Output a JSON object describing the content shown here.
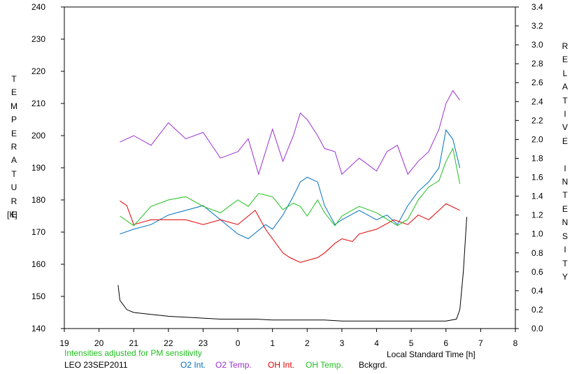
{
  "chart_data": {
    "type": "line",
    "left_axis": {
      "label": "TEMPERATURE",
      "unit": "[K]",
      "range": [
        140,
        240
      ],
      "ticks": [
        140,
        150,
        160,
        170,
        180,
        190,
        200,
        210,
        220,
        230,
        240
      ]
    },
    "right_axis": {
      "label": "RELATIVE INTENSITY",
      "range": [
        0,
        3.4
      ],
      "ticks": [
        "0.0",
        "0.2",
        "0.4",
        "0.6",
        "0.8",
        "1.0",
        "1.2",
        "1.4",
        "1.6",
        "1.8",
        "2.0",
        "2.2",
        "2.4",
        "2.6",
        "2.8",
        "3.0",
        "3.2",
        "3.4"
      ]
    },
    "x_axis": {
      "label": "Local Standard Time [h]",
      "range": [
        19,
        32
      ],
      "tick_labels": [
        "19",
        "20",
        "21",
        "22",
        "23",
        "0",
        "1",
        "2",
        "3",
        "4",
        "5",
        "6",
        "7",
        "8"
      ]
    },
    "note": "Intensities adjusted for PM sensitivity",
    "station_date": "LEO 23SEP2011",
    "grid": false,
    "legend_position": "bottom",
    "series": [
      {
        "name": "O2 Int.",
        "color": "#0070c0",
        "axis": "right",
        "x": [
          20.6,
          21.0,
          21.5,
          22.0,
          22.5,
          23.0,
          23.5,
          24.0,
          24.3,
          24.8,
          25.0,
          25.3,
          25.6,
          25.8,
          26.0,
          26.3,
          26.5,
          26.8,
          27.0,
          27.5,
          28.0,
          28.3,
          28.6,
          28.9,
          29.2,
          29.5,
          29.8,
          30.0,
          30.2,
          30.4
        ],
        "y": [
          1.0,
          1.05,
          1.1,
          1.2,
          1.25,
          1.3,
          1.15,
          1.0,
          0.95,
          1.1,
          1.05,
          1.2,
          1.4,
          1.55,
          1.6,
          1.55,
          1.3,
          1.1,
          1.15,
          1.25,
          1.15,
          1.2,
          1.1,
          1.3,
          1.45,
          1.55,
          1.7,
          2.1,
          2.0,
          1.7
        ]
      },
      {
        "name": "O2 Temp.",
        "color": "#9b30d0",
        "axis": "left",
        "x": [
          20.6,
          21.0,
          21.5,
          22.0,
          22.5,
          23.0,
          23.5,
          24.0,
          24.3,
          24.6,
          25.0,
          25.3,
          25.6,
          25.8,
          26.0,
          26.3,
          26.5,
          26.8,
          27.0,
          27.5,
          28.0,
          28.3,
          28.6,
          28.9,
          29.2,
          29.5,
          29.8,
          30.0,
          30.2,
          30.4
        ],
        "y": [
          198,
          200,
          197,
          204,
          199,
          201,
          193,
          195,
          199,
          188,
          202,
          192,
          200,
          207,
          205,
          200,
          196,
          195,
          188,
          193,
          189,
          195,
          197,
          188,
          192,
          195,
          202,
          210,
          214,
          211
        ]
      },
      {
        "name": "OH Int.",
        "color": "#e00000",
        "axis": "right",
        "x": [
          20.6,
          20.8,
          21.0,
          21.5,
          22.0,
          22.5,
          23.0,
          23.5,
          24.0,
          24.5,
          24.8,
          25.0,
          25.3,
          25.5,
          25.8,
          26.0,
          26.3,
          26.5,
          26.8,
          27.0,
          27.3,
          27.5,
          28.0,
          28.5,
          28.9,
          29.2,
          29.5,
          29.8,
          30.0,
          30.4
        ],
        "y": [
          1.35,
          1.3,
          1.1,
          1.15,
          1.15,
          1.15,
          1.1,
          1.15,
          1.1,
          1.25,
          1.05,
          0.95,
          0.8,
          0.75,
          0.7,
          0.72,
          0.75,
          0.8,
          0.9,
          0.95,
          0.92,
          1.0,
          1.05,
          1.15,
          1.1,
          1.2,
          1.15,
          1.25,
          1.32,
          1.25
        ]
      },
      {
        "name": "OH Temp.",
        "color": "#1fc01f",
        "axis": "left",
        "x": [
          20.6,
          21.0,
          21.5,
          22.0,
          22.5,
          23.0,
          23.5,
          24.0,
          24.3,
          24.6,
          25.0,
          25.3,
          25.6,
          25.8,
          26.0,
          26.3,
          26.5,
          26.8,
          27.0,
          27.5,
          28.0,
          28.3,
          28.6,
          28.9,
          29.2,
          29.5,
          29.8,
          30.0,
          30.2,
          30.4
        ],
        "y": [
          175,
          172,
          178,
          180,
          181,
          178,
          176,
          180,
          178,
          182,
          181,
          177,
          179,
          178,
          175,
          180,
          176,
          172,
          175,
          178,
          176,
          174,
          172,
          174,
          180,
          184,
          186,
          192,
          196,
          185
        ]
      },
      {
        "name": "Bckgrd.",
        "color": "#000000",
        "axis": "right",
        "x": [
          20.55,
          20.6,
          20.8,
          21.0,
          21.5,
          22.0,
          22.5,
          23.0,
          23.5,
          24.0,
          24.5,
          25.0,
          25.5,
          26.0,
          26.5,
          27.0,
          27.5,
          28.0,
          28.5,
          29.0,
          29.5,
          30.0,
          30.3,
          30.4,
          30.5,
          30.6
        ],
        "y": [
          0.46,
          0.3,
          0.2,
          0.17,
          0.15,
          0.13,
          0.12,
          0.11,
          0.1,
          0.1,
          0.1,
          0.09,
          0.09,
          0.09,
          0.09,
          0.08,
          0.08,
          0.08,
          0.08,
          0.08,
          0.08,
          0.08,
          0.1,
          0.2,
          0.6,
          1.18
        ]
      }
    ]
  }
}
